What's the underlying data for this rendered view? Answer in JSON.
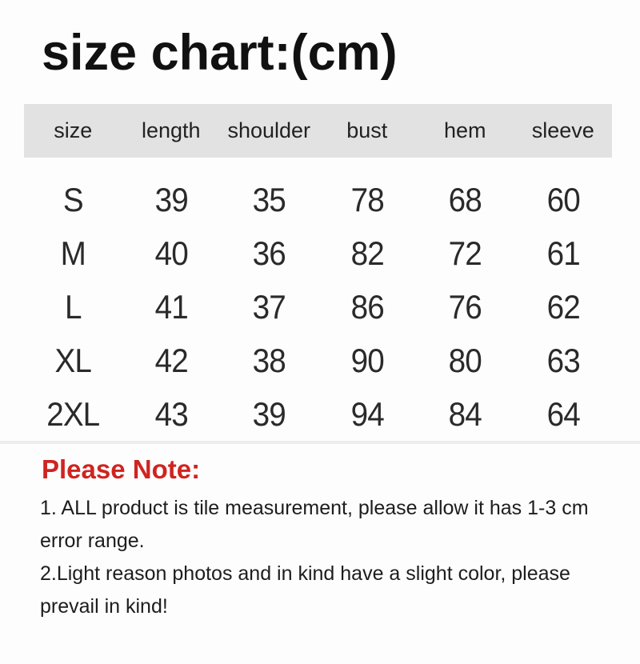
{
  "page": {
    "title": "size chart:(cm)",
    "background_color": "#fdfdfd"
  },
  "chart_data": {
    "type": "table",
    "title": "size chart:(cm)",
    "columns": [
      "size",
      "length",
      "shoulder",
      "bust",
      "hem",
      "sleeve"
    ],
    "rows": [
      [
        "S",
        "39",
        "35",
        "78",
        "68",
        "60"
      ],
      [
        "M",
        "40",
        "36",
        "82",
        "72",
        "61"
      ],
      [
        "L",
        "41",
        "37",
        "86",
        "76",
        "62"
      ],
      [
        "XL",
        "42",
        "38",
        "90",
        "80",
        "63"
      ],
      [
        "2XL",
        "43",
        "39",
        "94",
        "84",
        "64"
      ]
    ],
    "header_bg_color": "#e2e2e2"
  },
  "notes": {
    "heading": "Please Note:",
    "heading_color": "#cf2420",
    "items": [
      "1. ALL product is tile measurement, please allow it has 1-3 cm error range.",
      "2.Light reason photos and in kind have a slight color, please prevail in kind!"
    ]
  }
}
